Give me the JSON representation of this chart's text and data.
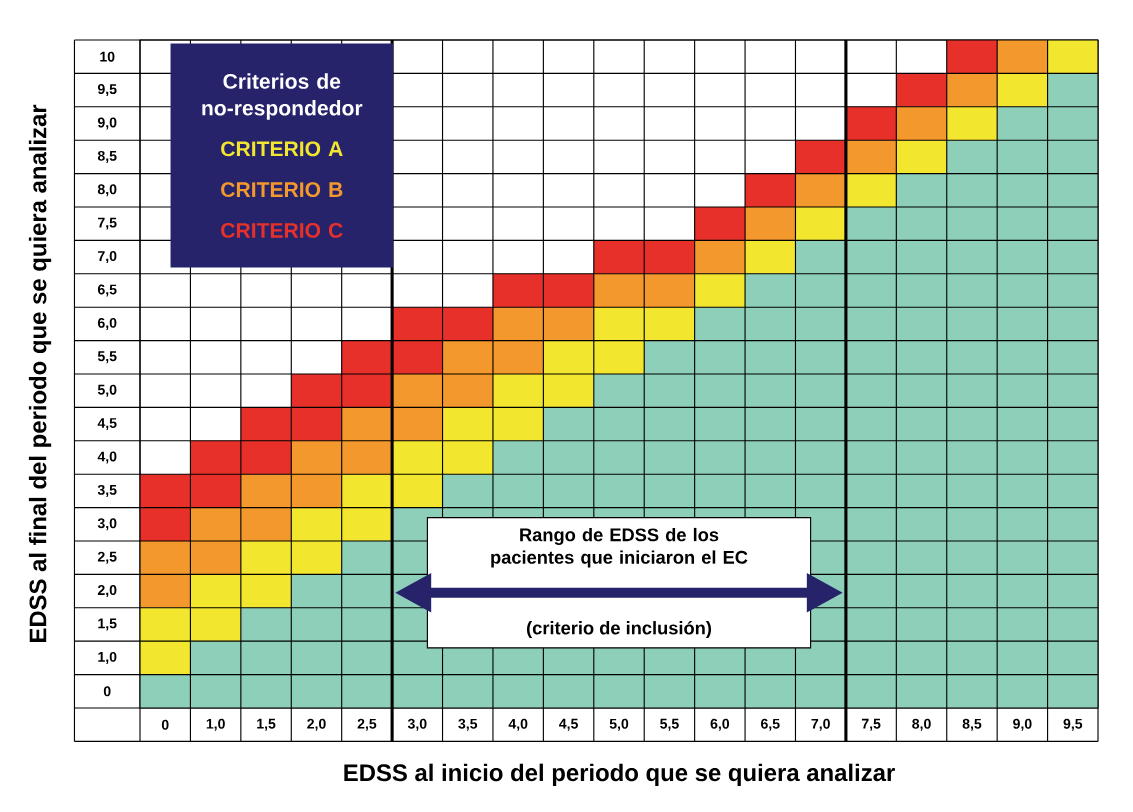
{
  "chart_data": {
    "type": "bar",
    "stacked": true,
    "xlabel": "EDSS al inicio del periodo que se quiera analizar",
    "ylabel": "EDSS al final del periodo que se quiera analizar",
    "legend_title": "Criterios de no-respondedor",
    "legend": "top left",
    "grid": true,
    "categories": [
      "0",
      "1,0",
      "1,5",
      "2,0",
      "2,5",
      "3,0",
      "3,5",
      "4,0",
      "4,5",
      "5,0",
      "5,5",
      "6,0",
      "6,5",
      "7,0",
      "7,5",
      "8,0",
      "8,5",
      "9,0",
      "9,5"
    ],
    "ylim": [
      0.25,
      10.25
    ],
    "yticks": [
      {
        "value": 0.5,
        "label": "0"
      },
      {
        "value": 1,
        "label": "1,0"
      },
      {
        "value": 1.5,
        "label": "1,5"
      },
      {
        "value": 2,
        "label": "2,0"
      },
      {
        "value": 2.5,
        "label": "2,5"
      },
      {
        "value": 3,
        "label": "3,0"
      },
      {
        "value": 3.5,
        "label": "3,5"
      },
      {
        "value": 4,
        "label": "4,0"
      },
      {
        "value": 4.5,
        "label": "4,5"
      },
      {
        "value": 5,
        "label": "5,0"
      },
      {
        "value": 5.5,
        "label": "5,5"
      },
      {
        "value": 6,
        "label": "6,0"
      },
      {
        "value": 6.5,
        "label": "6,5"
      },
      {
        "value": 7,
        "label": "7,0"
      },
      {
        "value": 7.5,
        "label": "7,5"
      },
      {
        "value": 8,
        "label": "8,0"
      },
      {
        "value": 8.5,
        "label": "8,5"
      },
      {
        "value": 9,
        "label": "9,0"
      },
      {
        "value": 9.5,
        "label": "9,5"
      },
      10
    ],
    "series": [
      {
        "color": "#8ecfba",
        "base": [
          0.25,
          0.25,
          0.25,
          0.25,
          0.25,
          0.25,
          0.25,
          0.25,
          0.25,
          0.25,
          0.25,
          0.25,
          0.25,
          0.25,
          0.25,
          0.25,
          0.25,
          0.25,
          0.25
        ],
        "values": [
          0.5,
          1,
          1.5,
          2,
          2.5,
          3,
          3.5,
          4,
          4.5,
          5,
          5.5,
          6,
          6.5,
          7,
          7.5,
          8,
          8.5,
          9,
          9.5
        ]
      },
      {
        "name": "CRITERIO A",
        "color": "#f2e62e",
        "values": [
          1,
          1,
          1,
          1,
          1,
          1,
          1,
          1,
          1,
          1,
          0.5,
          0.5,
          0.5,
          0.5,
          0.5,
          0.5,
          0.5,
          0.5,
          0.5
        ]
      },
      {
        "name": "CRITERIO B",
        "color": "#f3982c",
        "values": [
          1,
          1,
          1,
          1,
          1,
          1,
          1,
          1,
          0.5,
          0.5,
          0.5,
          0.5,
          0.5,
          0.5,
          0.5,
          0.5,
          0.5,
          0.5,
          null
        ]
      },
      {
        "name": "CRITERIO C",
        "color": "#e8302a",
        "values": [
          1,
          1,
          1,
          1,
          1,
          1,
          0.5,
          0.5,
          0.5,
          0.5,
          0.5,
          0.5,
          0.5,
          0.5,
          0.5,
          0.5,
          0.5,
          null,
          null
        ]
      }
    ],
    "bands": [
      {
        "axis": "x",
        "from": "3,0",
        "to": "7,0",
        "label": "Rango de EDSS de los pacientes que iniciaron el EC"
      }
    ],
    "annotations": [
      "(criterio de inclusión)"
    ]
  }
}
